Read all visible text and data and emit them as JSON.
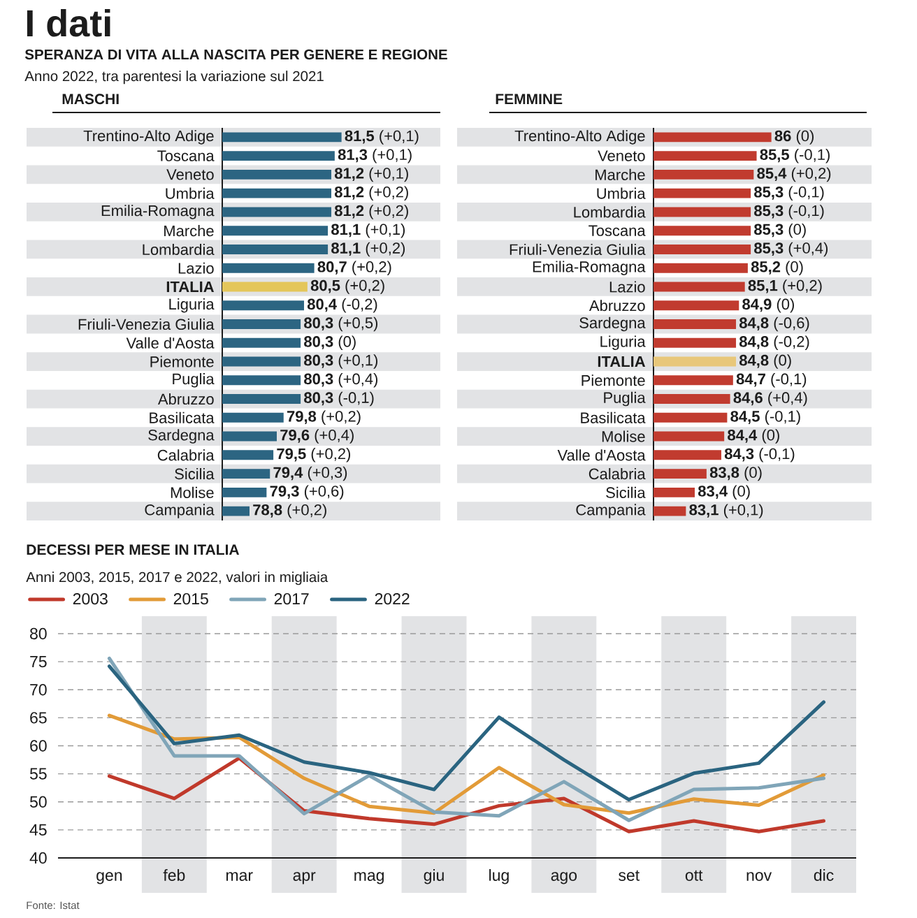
{
  "chart_data": [
    {
      "type": "bar",
      "orientation": "horizontal",
      "title": "MASCHI",
      "annotations": [
        "I dati",
        "SPERANZA DI VITA ALLA NASCITA PER GENERE E REGIONE",
        "Anno 2022, tra parentesi la variazione sul 2021"
      ],
      "categories": [
        "Trentino-Alto Adige",
        "Toscana",
        "Veneto",
        "Umbria",
        "Emilia-Romagna",
        "Marche",
        "Lombardia",
        "Lazio",
        "ITALIA",
        "Liguria",
        "Friuli-Venezia Giulia",
        "Valle d'Aosta",
        "Piemonte",
        "Puglia",
        "Abruzzo",
        "Basilicata",
        "Sardegna",
        "Calabria",
        "Sicilia",
        "Molise",
        "Campania"
      ],
      "values": [
        81.5,
        81.3,
        81.2,
        81.2,
        81.2,
        81.1,
        81.1,
        80.7,
        80.5,
        80.4,
        80.3,
        80.3,
        80.3,
        80.3,
        80.3,
        79.8,
        79.6,
        79.5,
        79.4,
        79.3,
        78.8
      ],
      "colors": [
        "#2c6582",
        "#2c6582",
        "#2c6582",
        "#2c6582",
        "#2c6582",
        "#2c6582",
        "#2c6582",
        "#2c6582",
        "#e4c65a",
        "#2c6582",
        "#2c6582",
        "#2c6582",
        "#2c6582",
        "#2c6582",
        "#2c6582",
        "#2c6582",
        "#2c6582",
        "#2c6582",
        "#2c6582",
        "#2c6582",
        "#2c6582"
      ],
      "value_labels": [
        "**81,5** (+0,1)",
        "**81,3** (+0,1)",
        "**81,2** (+0,1)",
        "**81,2** (+0,2)",
        "**81,2** (+0,2)",
        "**81,1** (+0,1)",
        "**81,1** (+0,2)",
        "**80,7** (+0,2)",
        "**80,5** (+0,2)",
        "**80,4** (-0,2)",
        "**80,3** (+0,5)",
        "**80,3** (0)",
        "**80,3** (+0,1)",
        "**80,3** (+0,4)",
        "**80,3** (-0,1)",
        "**79,8** (+0,2)",
        "**79,6** (+0,4)",
        "**79,5** (+0,2)",
        "**79,4** (+0,3)",
        "**79,3** (+0,6)",
        "**78,8** (+0,2)"
      ],
      "xlim": [
        78,
        81.5
      ],
      "tick_labels": "y"
    },
    {
      "type": "bar",
      "orientation": "horizontal",
      "title": "FEMMINE",
      "categories": [
        "Trentino-Alto Adige",
        "Veneto",
        "Marche",
        "Umbria",
        "Lombardia",
        "Toscana",
        "Friuli-Venezia Giulia",
        "Emilia-Romagna",
        "Lazio",
        "Abruzzo",
        "Sardegna",
        "Liguria",
        "ITALIA",
        "Piemonte",
        "Puglia",
        "Basilicata",
        "Molise",
        "Valle d'Aosta",
        "Calabria",
        "Sicilia",
        "Campania"
      ],
      "values": [
        86,
        85.5,
        85.4,
        85.3,
        85.3,
        85.3,
        85.3,
        85.2,
        85.1,
        84.9,
        84.8,
        84.8,
        84.8,
        84.7,
        84.6,
        84.5,
        84.4,
        84.3,
        83.8,
        83.4,
        83.1
      ],
      "colors": [
        "#c13b2f",
        "#c13b2f",
        "#c13b2f",
        "#c13b2f",
        "#c13b2f",
        "#c13b2f",
        "#c13b2f",
        "#c13b2f",
        "#c13b2f",
        "#c13b2f",
        "#c13b2f",
        "#c13b2f",
        "#e8c77a",
        "#c13b2f",
        "#c13b2f",
        "#c13b2f",
        "#c13b2f",
        "#c13b2f",
        "#c13b2f",
        "#c13b2f",
        "#c13b2f"
      ],
      "value_labels": [
        "**86** (0)",
        "**85,5** (-0,1)",
        "**85,4** (+0,2)",
        "**85,3** (-0,1)",
        "**85,3** (-0,1)",
        "**85,3** (0)",
        "**85,3** (+0,4)",
        "**85,2** (0)",
        "**85,1** (+0,2)",
        "**84,9** (0)",
        "**84,8** (-0,6)",
        "**84,8** (-0,2)",
        "**84,8** (0)",
        "**84,7** (-0,1)",
        "**84,6** (+0,4)",
        "**84,5** (-0,1)",
        "**84,4** (0)",
        "**84,3** (-0,1)",
        "**83,8** (0)",
        "**83,4** (0)",
        "**83,1** (+0,1)"
      ],
      "xlim": [
        82,
        86
      ],
      "tick_labels": "y"
    },
    {
      "type": "line",
      "title": "DECESSI PER MESE IN ITALIA",
      "subtitle": "Anni 2003, 2015, 2017 e 2022, valori in migliaia",
      "annotations": [
        "Fonte: Istat"
      ],
      "categories": [
        "gen",
        "feb",
        "mar",
        "apr",
        "mag",
        "giu",
        "lug",
        "ago",
        "set",
        "ott",
        "nov",
        "dic"
      ],
      "series": [
        {
          "name": "2003",
          "color": "#c0392b",
          "values": [
            54.6,
            50.6,
            57.8,
            48.4,
            47.0,
            46.0,
            49.3,
            50.6,
            44.7,
            46.6,
            44.7,
            46.6
          ]
        },
        {
          "name": "2015",
          "color": "#e29b38",
          "values": [
            65.4,
            61.2,
            61.5,
            54.2,
            49.2,
            48.0,
            56.1,
            49.5,
            48.0,
            50.5,
            49.4,
            54.8
          ]
        },
        {
          "name": "2017",
          "color": "#80a5b8",
          "values": [
            75.6,
            58.2,
            58.2,
            47.9,
            54.7,
            48.2,
            47.5,
            53.6,
            46.7,
            52.2,
            52.5,
            54.2
          ]
        },
        {
          "name": "2022",
          "color": "#2a6480",
          "values": [
            74.2,
            60.4,
            61.9,
            57.1,
            55.2,
            52.2,
            65.1,
            57.5,
            50.4,
            55.1,
            56.9,
            67.8
          ]
        }
      ],
      "ylim": [
        40,
        80
      ],
      "yticks": [
        40,
        45,
        50,
        55,
        60,
        65,
        70,
        75,
        80
      ],
      "grid": "y",
      "legend": "top left"
    }
  ]
}
